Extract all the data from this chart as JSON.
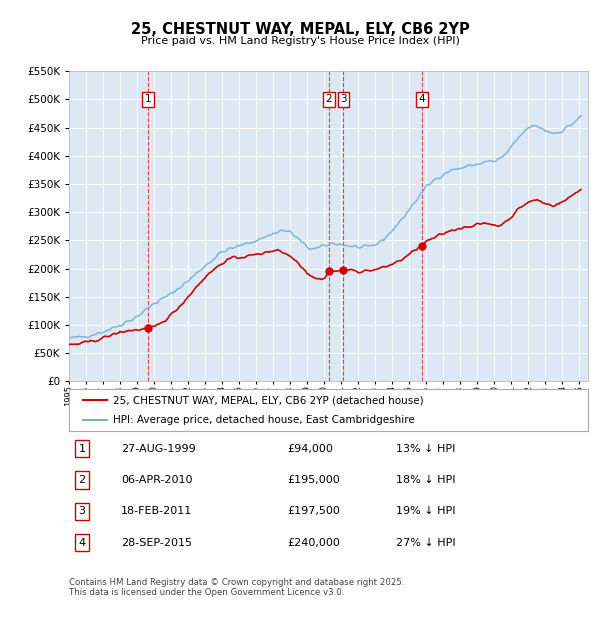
{
  "title": "25, CHESTNUT WAY, MEPAL, ELY, CB6 2YP",
  "subtitle": "Price paid vs. HM Land Registry's House Price Index (HPI)",
  "ylim": [
    0,
    550000
  ],
  "yticks": [
    0,
    50000,
    100000,
    150000,
    200000,
    250000,
    300000,
    350000,
    400000,
    450000,
    500000,
    550000
  ],
  "xlim_start": 1995.0,
  "xlim_end": 2025.5,
  "bg_color": "#dce9f5",
  "red_line_color": "#cc0000",
  "blue_line_color": "#7bafd4",
  "legend_label_red": "25, CHESTNUT WAY, MEPAL, ELY, CB6 2YP (detached house)",
  "legend_label_blue": "HPI: Average price, detached house, East Cambridgeshire",
  "transactions": [
    {
      "num": 1,
      "date": "27-AUG-1999",
      "price": 94000,
      "pct": "13%",
      "x_year": 1999.65
    },
    {
      "num": 2,
      "date": "06-APR-2010",
      "price": 195000,
      "pct": "18%",
      "x_year": 2010.27
    },
    {
      "num": 3,
      "date": "18-FEB-2011",
      "price": 197500,
      "pct": "19%",
      "x_year": 2011.13
    },
    {
      "num": 4,
      "date": "28-SEP-2015",
      "price": 240000,
      "pct": "27%",
      "x_year": 2015.75
    }
  ],
  "footer": "Contains HM Land Registry data © Crown copyright and database right 2025.\nThis data is licensed under the Open Government Licence v3.0."
}
